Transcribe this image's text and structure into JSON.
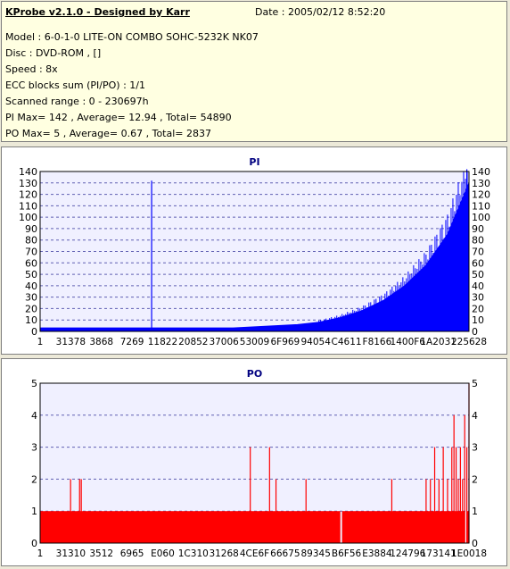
{
  "info": {
    "title": "KProbe v2.1.0 - Designed by Karr",
    "date": "Date : 2005/02/12 8:52:20",
    "model": "Model : 6-0-1-0 LITE-ON COMBO SOHC-5232K NK07",
    "disc": "Disc : DVD-ROM ,  []",
    "speed": "Speed : 8x",
    "ecc": "ECC blocks sum (PI/PO) : 1/1",
    "range": "Scanned range : 0 - 230697h",
    "pi_stats": "PI Max= 142 , Average= 12.94 , Total= 54890",
    "po_stats": "PO Max= 5 , Average= 0.67 , Total= 2837"
  },
  "colors": {
    "pi": "#0000ff",
    "po": "#ff0000",
    "plot_bg": "#f0f0ff",
    "title": "#000080",
    "grid": "#000080"
  },
  "chart_data": [
    {
      "type": "area",
      "title": "PI",
      "xlabel": "",
      "ylabel": "",
      "ylim": [
        0,
        140
      ],
      "yticks": [
        0,
        10,
        20,
        30,
        40,
        50,
        60,
        70,
        80,
        90,
        100,
        110,
        120,
        130,
        140
      ],
      "xtick_labels": [
        "1",
        "31378",
        "3868",
        "7269",
        "11822",
        "20852",
        "37006",
        "53009",
        "6F969",
        "94054",
        "C4611",
        "F8166",
        "1400F6",
        "1A2031",
        "225628"
      ],
      "grid": true,
      "series": [
        {
          "x": [
            0,
            0.05,
            0.1,
            0.15,
            0.2,
            0.25,
            0.3,
            0.35,
            0.4,
            0.45,
            0.5,
            0.55,
            0.6,
            0.65,
            0.7,
            0.75,
            0.8,
            0.85,
            0.9,
            0.95,
            1.0
          ],
          "values": [
            3,
            3,
            3,
            3,
            3,
            3,
            3,
            3,
            3,
            3,
            4,
            5,
            6,
            8,
            12,
            18,
            27,
            40,
            58,
            85,
            130
          ]
        }
      ],
      "spikes": [
        {
          "x": 0.26,
          "value": 132
        },
        {
          "x": 0.995,
          "value": 142
        }
      ]
    },
    {
      "type": "bar",
      "title": "PO",
      "xlabel": "",
      "ylabel": "",
      "ylim": [
        0,
        5
      ],
      "yticks": [
        0,
        1,
        2,
        3,
        4,
        5
      ],
      "xtick_labels": [
        "1",
        "31310",
        "3512",
        "6965",
        "E060",
        "1C310",
        "31268",
        "4CE6F",
        "66675",
        "89345",
        "B6F56",
        "E3884",
        "124796",
        "173141",
        "1E0018"
      ],
      "grid": true,
      "baseline": 1,
      "baseline_gaps": [
        0.7,
        0.99
      ],
      "spikes": [
        {
          "x": 0.071,
          "value": 2
        },
        {
          "x": 0.092,
          "value": 2
        },
        {
          "x": 0.096,
          "value": 2
        },
        {
          "x": 0.49,
          "value": 3
        },
        {
          "x": 0.535,
          "value": 3
        },
        {
          "x": 0.55,
          "value": 2
        },
        {
          "x": 0.62,
          "value": 2
        },
        {
          "x": 0.82,
          "value": 2
        },
        {
          "x": 0.9,
          "value": 2
        },
        {
          "x": 0.91,
          "value": 2
        },
        {
          "x": 0.92,
          "value": 3
        },
        {
          "x": 0.93,
          "value": 2
        },
        {
          "x": 0.94,
          "value": 3
        },
        {
          "x": 0.95,
          "value": 2
        },
        {
          "x": 0.96,
          "value": 3
        },
        {
          "x": 0.965,
          "value": 4
        },
        {
          "x": 0.97,
          "value": 3
        },
        {
          "x": 0.975,
          "value": 2
        },
        {
          "x": 0.98,
          "value": 3
        },
        {
          "x": 0.985,
          "value": 2
        },
        {
          "x": 0.99,
          "value": 4
        },
        {
          "x": 0.995,
          "value": 3
        },
        {
          "x": 1.0,
          "value": 5
        }
      ]
    }
  ]
}
